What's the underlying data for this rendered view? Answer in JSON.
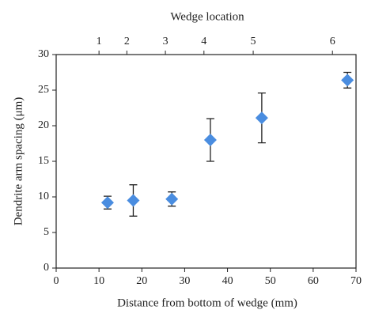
{
  "chart_data": {
    "type": "scatter",
    "title": "Wedge location",
    "x_label": "Distance from bottom of wedge (mm)",
    "y_label": "Dendrite arm spacing (μm)",
    "x": [
      12,
      18,
      27,
      36,
      48,
      68
    ],
    "series": [
      {
        "name": "Dendrite arm spacing",
        "color": "#4a8de0",
        "values": [
          9.2,
          9.5,
          9.7,
          18.0,
          21.1,
          26.4
        ],
        "errors": [
          0.9,
          2.2,
          1.0,
          3.0,
          3.5,
          1.1
        ]
      }
    ],
    "xlim": [
      0,
      70
    ],
    "xticks": [
      0,
      10,
      20,
      30,
      40,
      50,
      60,
      70
    ],
    "ylim": [
      0,
      30
    ],
    "yticks": [
      0,
      5,
      10,
      15,
      20,
      25,
      30
    ],
    "x2ticks": [
      {
        "value": 10,
        "label": "1"
      },
      {
        "value": 16.5,
        "label": "2"
      },
      {
        "value": 25.5,
        "label": "3"
      },
      {
        "value": 34.5,
        "label": "4"
      },
      {
        "value": 46,
        "label": "5"
      },
      {
        "value": 64.5,
        "label": "6"
      }
    ],
    "grid": false
  }
}
